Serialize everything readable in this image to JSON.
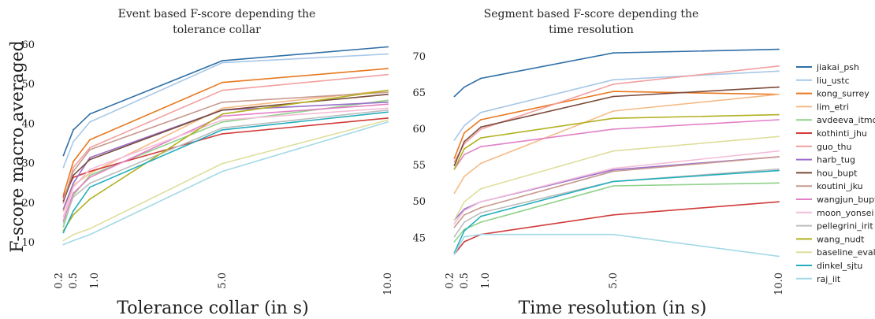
{
  "figure_ylabel": "F-score macro averaged",
  "legend": {
    "placement": "right",
    "entries": [
      {
        "label": "jiakai_psh",
        "color": "#2f6fa6"
      },
      {
        "label": "liu_ustc",
        "color": "#a9c7e6"
      },
      {
        "label": "kong_surrey",
        "color": "#e8781f"
      },
      {
        "label": "lim_etri",
        "color": "#f6bb86"
      },
      {
        "label": "avdeeva_itmo",
        "color": "#8fd18a"
      },
      {
        "label": "kothinti_jhu",
        "color": "#d23a3a"
      },
      {
        "label": "guo_thu",
        "color": "#f2a0a0"
      },
      {
        "label": "harb_tug",
        "color": "#9a6fc9"
      },
      {
        "label": "hou_bupt",
        "color": "#7a4b3a"
      },
      {
        "label": "koutini_jku",
        "color": "#c79a8f"
      },
      {
        "label": "wangjun_bupt",
        "color": "#e37fc6"
      },
      {
        "label": "moon_yonsei",
        "color": "#f3bdd8"
      },
      {
        "label": "pellegrini_irit",
        "color": "#bdbdbd"
      },
      {
        "label": "wang_nudt",
        "color": "#b2b020"
      },
      {
        "label": "baseline_eval",
        "color": "#dede9c"
      },
      {
        "label": "dinkel_sjtu",
        "color": "#24aebd"
      },
      {
        "label": "raj_iit",
        "color": "#a3d9e6"
      }
    ]
  },
  "chart_data": [
    {
      "type": "line",
      "title": "Event based F-score depending the tolerance collar",
      "title_lines": [
        "Event based F-score depending the",
        "tolerance collar"
      ],
      "xlabel": "Tolerance collar (in s)",
      "ylabel": "F-score macro averaged",
      "x": [
        0.2,
        0.5,
        1.0,
        5.0,
        10.0
      ],
      "xticks": [
        0.2,
        0.5,
        1.0,
        5.0,
        10.0
      ],
      "xtick_labels": [
        "0.2",
        "0.5",
        "1.0",
        "5.0",
        "10.0"
      ],
      "yticks": [
        10,
        20,
        30,
        40,
        50,
        60
      ],
      "xlim": [
        0.0,
        10.0
      ],
      "ylim": [
        8,
        61
      ],
      "grid": false,
      "series": [
        {
          "name": "jiakai_psh",
          "values": [
            32.0,
            38.5,
            42.5,
            56.0,
            59.5
          ]
        },
        {
          "name": "liu_ustc",
          "values": [
            29.0,
            35.5,
            40.5,
            55.5,
            57.7
          ]
        },
        {
          "name": "kong_surrey",
          "values": [
            22.0,
            30.5,
            36.0,
            50.5,
            54.0
          ]
        },
        {
          "name": "lim_etri",
          "values": [
            18.0,
            24.5,
            27.5,
            44.0,
            48.5
          ]
        },
        {
          "name": "avdeeva_itmo",
          "values": [
            14.0,
            22.0,
            27.0,
            40.5,
            46.0
          ]
        },
        {
          "name": "kothinti_jhu",
          "values": [
            21.5,
            26.5,
            28.0,
            37.5,
            41.5
          ]
        },
        {
          "name": "guo_thu",
          "values": [
            20.0,
            29.0,
            34.0,
            48.5,
            52.5
          ]
        },
        {
          "name": "harb_tug",
          "values": [
            18.5,
            25.0,
            31.5,
            43.5,
            45.5
          ]
        },
        {
          "name": "hou_bupt",
          "values": [
            20.5,
            27.0,
            31.0,
            43.5,
            47.5
          ]
        },
        {
          "name": "koutini_jku",
          "values": [
            21.0,
            28.0,
            33.5,
            45.5,
            48.0
          ]
        },
        {
          "name": "wangjun_bupt",
          "values": [
            15.5,
            22.5,
            26.5,
            42.0,
            45.0
          ]
        },
        {
          "name": "moon_yonsei",
          "values": [
            16.5,
            24.0,
            28.5,
            41.0,
            44.0
          ]
        },
        {
          "name": "pellegrini_irit",
          "values": [
            15.0,
            21.5,
            25.0,
            39.0,
            43.5
          ]
        },
        {
          "name": "wang_nudt",
          "values": [
            13.0,
            17.0,
            21.0,
            42.5,
            48.5
          ]
        },
        {
          "name": "baseline_eval",
          "values": [
            10.5,
            12.0,
            13.5,
            30.0,
            41.0
          ]
        },
        {
          "name": "dinkel_sjtu",
          "values": [
            12.5,
            18.0,
            24.0,
            38.5,
            43.0
          ]
        },
        {
          "name": "raj_iit",
          "values": [
            9.5,
            10.5,
            12.0,
            28.0,
            40.5
          ]
        }
      ]
    },
    {
      "type": "line",
      "title": "Segment based F-score depending the time resolution",
      "title_lines": [
        "Segment based F-score depending the",
        "time resolution"
      ],
      "xlabel": "Time resolution (in s)",
      "ylabel": "",
      "x": [
        0.2,
        0.5,
        1.0,
        5.0,
        10.0
      ],
      "xticks": [
        0.2,
        0.5,
        1.0,
        5.0,
        10.0
      ],
      "xtick_labels": [
        "0.2",
        "0.5",
        "1.0",
        "5.0",
        "10.0"
      ],
      "yticks": [
        45,
        50,
        55,
        60,
        65,
        70
      ],
      "xlim": [
        0.0,
        10.0
      ],
      "ylim": [
        42,
        71.5
      ],
      "grid": false,
      "series": [
        {
          "name": "jiakai_psh",
          "values": [
            64.5,
            65.8,
            67.0,
            70.5,
            71.0
          ]
        },
        {
          "name": "liu_ustc",
          "values": [
            58.5,
            60.5,
            62.3,
            66.8,
            68.0
          ]
        },
        {
          "name": "kong_surrey",
          "values": [
            56.0,
            59.5,
            61.3,
            65.2,
            64.8
          ]
        },
        {
          "name": "lim_etri",
          "values": [
            51.2,
            53.5,
            55.3,
            62.5,
            64.8
          ]
        },
        {
          "name": "avdeeva_itmo",
          "values": [
            44.5,
            46.2,
            47.2,
            52.2,
            52.6
          ]
        },
        {
          "name": "kothinti_jhu",
          "values": [
            42.8,
            44.5,
            45.5,
            48.2,
            50.0
          ]
        },
        {
          "name": "guo_thu",
          "values": [
            55.5,
            58.0,
            60.0,
            66.2,
            68.7
          ]
        },
        {
          "name": "harb_tug",
          "values": [
            47.5,
            49.0,
            50.0,
            54.4,
            56.2
          ]
        },
        {
          "name": "hou_bupt",
          "values": [
            55.0,
            58.3,
            60.3,
            64.5,
            65.8
          ]
        },
        {
          "name": "koutini_jku",
          "values": [
            46.5,
            48.2,
            49.2,
            54.2,
            56.2
          ]
        },
        {
          "name": "wangjun_bupt",
          "values": [
            54.5,
            56.5,
            57.6,
            60.0,
            61.3
          ]
        },
        {
          "name": "moon_yonsei",
          "values": [
            47.0,
            48.8,
            50.0,
            54.6,
            57.0
          ]
        },
        {
          "name": "pellegrini_irit",
          "values": [
            45.2,
            47.2,
            48.5,
            52.8,
            54.5
          ]
        },
        {
          "name": "wang_nudt",
          "values": [
            54.5,
            57.3,
            58.8,
            61.5,
            62.0
          ]
        },
        {
          "name": "baseline_eval",
          "values": [
            47.5,
            50.0,
            51.8,
            57.0,
            59.0
          ]
        },
        {
          "name": "dinkel_sjtu",
          "values": [
            43.0,
            46.0,
            48.0,
            52.8,
            54.3
          ]
        },
        {
          "name": "raj_iit",
          "values": [
            42.8,
            45.2,
            45.5,
            45.5,
            42.5
          ]
        }
      ]
    }
  ]
}
